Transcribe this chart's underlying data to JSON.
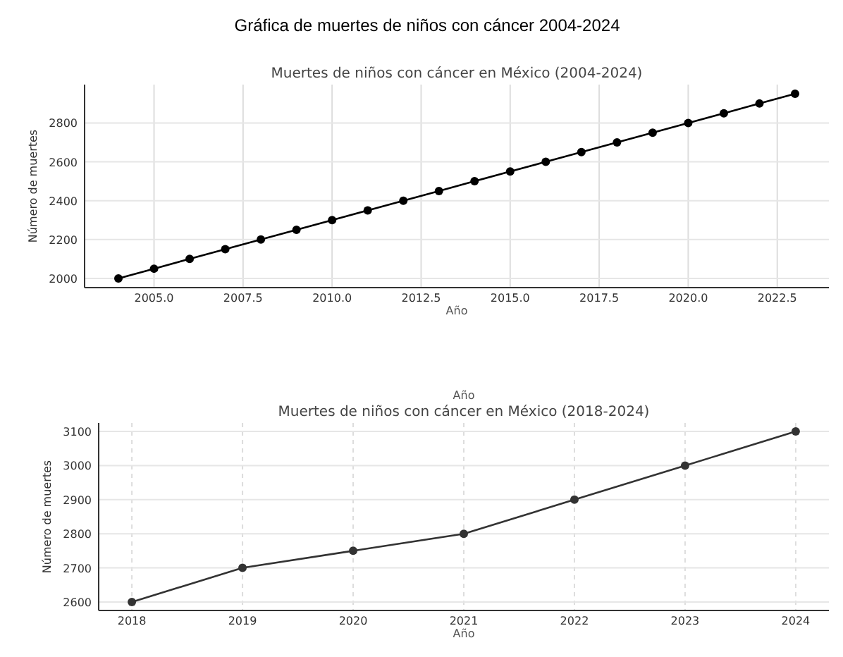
{
  "chart_data": [
    {
      "type": "line",
      "title": "Gráfica de muertes de niños con cáncer 2004-2024",
      "subtitle": "Muertes de niños con cáncer en México (2004-2024)",
      "xlabel": "Año",
      "ylabel": "Número de muertes",
      "x": [
        2004,
        2005,
        2006,
        2007,
        2008,
        2009,
        2010,
        2011,
        2012,
        2013,
        2014,
        2015,
        2016,
        2017,
        2018,
        2019,
        2020,
        2021,
        2022,
        2023
      ],
      "series": [
        {
          "color": "#000000",
          "values": [
            2000,
            2050,
            2100,
            2150,
            2200,
            2250,
            2300,
            2350,
            2400,
            2450,
            2500,
            2550,
            2600,
            2650,
            2700,
            2750,
            2800,
            2850,
            2900,
            2950
          ]
        }
      ],
      "xlim": [
        2003.05,
        2023.95
      ],
      "xticks": [
        {
          "value": 2005,
          "label": "2005.0"
        },
        {
          "value": 2007.5,
          "label": "2007.5"
        },
        {
          "value": 2010,
          "label": "2010.0"
        },
        {
          "value": 2012.5,
          "label": "2012.5"
        },
        {
          "value": 2015,
          "label": "2015.0"
        },
        {
          "value": 2017.5,
          "label": "2017.5"
        },
        {
          "value": 2020,
          "label": "2020.0"
        },
        {
          "value": 2022.5,
          "label": "2022.5"
        }
      ],
      "ylim": [
        1952.5,
        2997.5
      ],
      "yticks": [
        2000,
        2200,
        2400,
        2600,
        2800
      ],
      "grid": true,
      "marker": "circle",
      "line_style": "solid"
    },
    {
      "type": "line",
      "title": "Muertes de niños con cáncer en México (2018-2024)",
      "xlabel": "Año",
      "ylabel": "Número de muertes",
      "annotations": [
        "Año"
      ],
      "x": [
        2018,
        2019,
        2020,
        2021,
        2022,
        2023,
        2024
      ],
      "series": [
        {
          "color": "#333333",
          "values": [
            2600,
            2700,
            2750,
            2800,
            2900,
            3000,
            3100
          ]
        }
      ],
      "xlim": [
        2017.7,
        2024.3
      ],
      "xticks": [
        2018,
        2019,
        2020,
        2021,
        2022,
        2023,
        2024
      ],
      "ylim": [
        2575,
        3125
      ],
      "yticks": [
        2600,
        2700,
        2800,
        2900,
        3000,
        3100
      ],
      "grid": true,
      "marker": "circle",
      "line_style": "solid"
    }
  ]
}
